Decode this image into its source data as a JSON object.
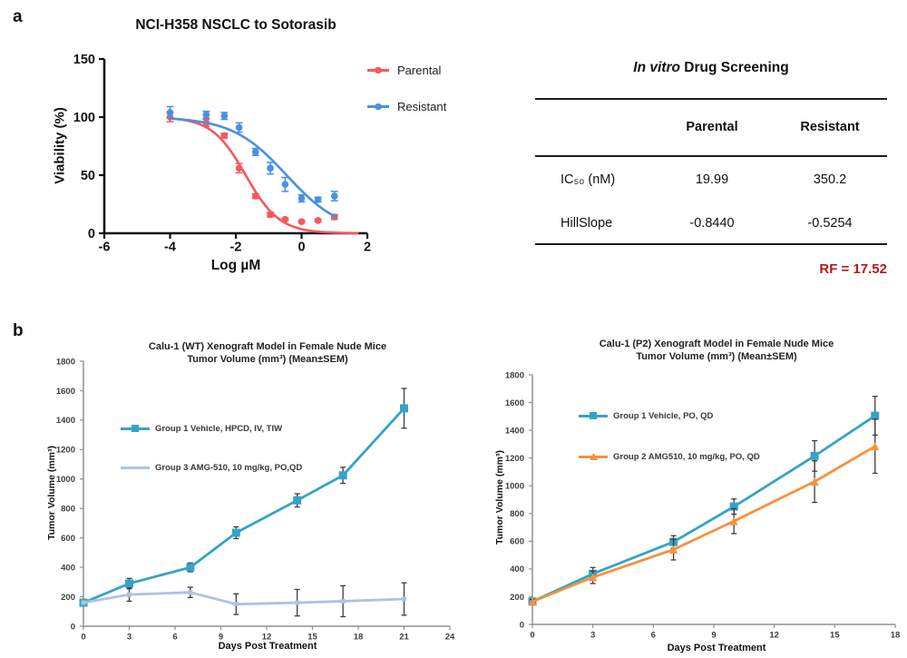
{
  "panels": {
    "a": "a",
    "b": "b"
  },
  "table": {
    "title_italic": "In vitro",
    "title_rest": " Drug Screening",
    "col_headers": [
      "Parental",
      "Resistant"
    ],
    "rows": [
      {
        "label": "IC₅₀ (nM)",
        "parental": "19.99",
        "resistant": "350.2"
      },
      {
        "label": "HillSlope",
        "parental": "-0.8440",
        "resistant": "-0.5254"
      }
    ],
    "rf_note": "RF = 17.52",
    "rf_color": "#B2191C"
  },
  "chart_data": [
    {
      "id": "dose_response",
      "type": "scatter",
      "title": "NCI-H358 NSCLC to Sotorasib",
      "xlabel": "Log µM",
      "ylabel": "Viability (%)",
      "xlim": [
        -6,
        2
      ],
      "xticks": [
        -6,
        -4,
        -2,
        0,
        2
      ],
      "ylim": [
        0,
        150
      ],
      "yticks": [
        0,
        50,
        100,
        150
      ],
      "legend_position": "right-top",
      "series": [
        {
          "name": "Parental",
          "color": "#F2595F",
          "marker": "circle",
          "x": [
            -4,
            -2.9,
            -2.35,
            -1.9,
            -1.4,
            -0.95,
            -0.5,
            0,
            0.5,
            1
          ],
          "y": [
            100,
            95,
            84,
            56,
            32,
            16,
            12,
            10,
            11,
            14
          ],
          "err": [
            4,
            3,
            2,
            4,
            2,
            2,
            1,
            1,
            1,
            2
          ],
          "fit": {
            "type": "4PL",
            "top": 100,
            "bottom": 0,
            "logIC50": -1.699,
            "hillslope": -0.844,
            "x_range": [
              -4,
              1.7
            ]
          }
        },
        {
          "name": "Resistant",
          "color": "#4A90E2",
          "marker": "circle",
          "x": [
            -4,
            -2.9,
            -2.35,
            -1.9,
            -1.4,
            -0.95,
            -0.5,
            0,
            0.5,
            1
          ],
          "y": [
            104,
            102,
            101,
            91,
            70,
            56,
            42,
            30,
            29,
            32
          ],
          "err": [
            5,
            3,
            3,
            4,
            3,
            5,
            6,
            3,
            2,
            4
          ],
          "fit": {
            "type": "4PL",
            "top": 100,
            "bottom": 0,
            "logIC50": -0.456,
            "hillslope": -0.525,
            "x_range": [
              -4,
              1.05
            ]
          }
        }
      ]
    },
    {
      "id": "xeno_wt",
      "type": "line",
      "title_line1": "Calu-1 (WT) Xenograft Model in Female Nude Mice",
      "title_line2": "Tumor Volume (mm³) (Mean±SEM)",
      "xlabel": "Days Post Treatment",
      "ylabel": "Tumor Volume (mm³)",
      "xlim": [
        0,
        24
      ],
      "xticks": [
        0,
        3,
        6,
        9,
        12,
        15,
        18,
        21,
        24
      ],
      "ylim": [
        0,
        1800
      ],
      "yticks": [
        0,
        200,
        400,
        600,
        800,
        1000,
        1200,
        1400,
        1600,
        1800
      ],
      "legend_position": "inside-left",
      "series": [
        {
          "name": "Group 1 Vehicle, HPCD, IV, TIW",
          "color": "#35A3C5",
          "err_color": "#3c3c3c",
          "marker": "square",
          "x": [
            0,
            3,
            7,
            10,
            14,
            17,
            21
          ],
          "y": [
            160,
            290,
            400,
            635,
            855,
            1025,
            1480
          ],
          "err": [
            12,
            35,
            30,
            40,
            45,
            55,
            135
          ]
        },
        {
          "name": "Group 3 AMG-510, 10 mg/kg, PO,QD",
          "color": "#AEC2E2",
          "err_color": "#3c3c3c",
          "marker": "square",
          "x": [
            0,
            3,
            7,
            10,
            14,
            17,
            21
          ],
          "y": [
            160,
            215,
            230,
            150,
            160,
            170,
            185
          ],
          "err": [
            0,
            45,
            35,
            70,
            90,
            105,
            110
          ]
        }
      ]
    },
    {
      "id": "xeno_p2",
      "type": "line",
      "title_line1": "Calu-1 (P2) Xenograft Model in Female Nude Mice",
      "title_line2": "Tumor Volume (mm³) (Mean±SEM)",
      "xlabel": "Days Post Treatment",
      "ylabel": "Tumor Volume (mm³)",
      "xlim": [
        0,
        18
      ],
      "xticks": [
        0,
        3,
        6,
        9,
        12,
        15,
        18
      ],
      "ylim": [
        0,
        1800
      ],
      "yticks": [
        0,
        200,
        400,
        600,
        800,
        1000,
        1200,
        1400,
        1600,
        1800
      ],
      "legend_position": "inside-left",
      "series": [
        {
          "name": "Group 1 Vehicle, PO, QD",
          "color": "#35A3C5",
          "err_color": "#3c3c3c",
          "marker": "square",
          "x": [
            0,
            3,
            7,
            10,
            14,
            17
          ],
          "y": [
            165,
            365,
            595,
            850,
            1215,
            1505
          ],
          "err": [
            15,
            45,
            45,
            55,
            110,
            140
          ]
        },
        {
          "name": "Group 2 AMG510, 10 mg/kg, PO, QD",
          "color": "#F5923E",
          "err_color": "#3c3c3c",
          "marker": "triangle",
          "x": [
            0,
            3,
            7,
            10,
            14,
            17
          ],
          "y": [
            165,
            340,
            540,
            745,
            1030,
            1285
          ],
          "err": [
            15,
            45,
            75,
            90,
            150,
            195
          ]
        }
      ]
    }
  ]
}
